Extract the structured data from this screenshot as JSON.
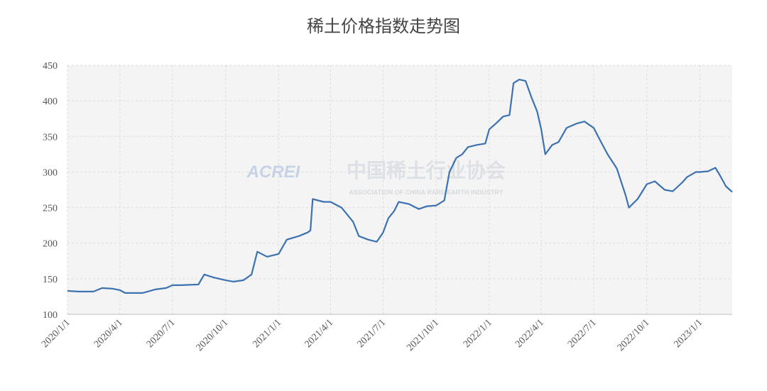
{
  "chart_data": {
    "type": "line",
    "title": "稀土价格指数走势图",
    "watermark": [
      "ACREI",
      "中国稀土行业协会",
      "ASSOCIATION OF CHINA RARE EARTH INDUSTRY"
    ],
    "x": [
      "2020/1/1",
      "2020/1/20",
      "2020/2/15",
      "2020/3/1",
      "2020/3/20",
      "2020/4/1",
      "2020/4/10",
      "2020/5/10",
      "2020/6/1",
      "2020/6/20",
      "2020/7/1",
      "2020/7/15",
      "2020/8/15",
      "2020/8/25",
      "2020/9/10",
      "2020/10/1",
      "2020/10/15",
      "2020/11/1",
      "2020/11/15",
      "2020/11/25",
      "2020/12/12",
      "2021/1/1",
      "2021/1/15",
      "2021/2/5",
      "2021/2/20",
      "2021/2/25",
      "2021/3/1",
      "2021/3/20",
      "2021/4/1",
      "2021/4/20",
      "2021/5/10",
      "2021/5/20",
      "2021/6/5",
      "2021/6/20",
      "2021/7/1",
      "2021/7/10",
      "2021/7/20",
      "2021/7/28",
      "2021/8/15",
      "2021/9/1",
      "2021/9/15",
      "2021/10/1",
      "2021/10/15",
      "2021/10/24",
      "2021/11/5",
      "2021/11/15",
      "2021/11/25",
      "2021/12/10",
      "2021/12/25",
      "2022/1/1",
      "2022/1/15",
      "2022/1/25",
      "2022/2/5",
      "2022/2/12",
      "2022/2/22",
      "2022/3/5",
      "2022/3/15",
      "2022/3/25",
      "2022/4/1",
      "2022/4/8",
      "2022/4/20",
      "2022/5/1",
      "2022/5/15",
      "2022/6/1",
      "2022/6/15",
      "2022/7/1",
      "2022/7/15",
      "2022/7/25",
      "2022/8/10",
      "2022/8/25",
      "2022/8/31",
      "2022/9/15",
      "2022/9/25",
      "2022/10/1",
      "2022/10/15",
      "2022/11/1",
      "2022/11/15",
      "2022/12/1",
      "2022/12/10",
      "2022/12/25",
      "2023/1/1",
      "2023/1/15",
      "2023/1/28",
      "2023/2/5",
      "2023/2/15",
      "2023/2/26"
    ],
    "series": [
      {
        "name": "稀土价格指数",
        "color": "#3d72b0",
        "values": [
          133,
          132,
          132,
          137,
          136,
          134,
          130,
          130,
          135,
          137,
          141,
          141,
          142,
          156,
          152,
          148,
          146,
          148,
          156,
          188,
          181,
          185,
          205,
          210,
          215,
          218,
          262,
          258,
          258,
          250,
          230,
          210,
          205,
          202,
          215,
          235,
          245,
          258,
          255,
          248,
          252,
          253,
          260,
          300,
          320,
          325,
          335,
          338,
          340,
          360,
          370,
          378,
          380,
          425,
          430,
          428,
          405,
          385,
          360,
          325,
          338,
          342,
          362,
          368,
          371,
          362,
          340,
          325,
          305,
          268,
          250,
          262,
          275,
          283,
          287,
          275,
          273,
          285,
          293,
          300,
          300,
          301,
          306,
          295,
          280,
          272
        ]
      }
    ],
    "xlim": [
      "2020/1/1",
      "2023/2/26"
    ],
    "xticks": [
      "2020/1/1",
      "2020/4/1",
      "2020/7/1",
      "2020/10/1",
      "2021/1/1",
      "2021/4/1",
      "2021/7/1",
      "2021/10/1",
      "2022/1/1",
      "2022/4/1",
      "2022/7/1",
      "2022/10/1",
      "2023/1/1"
    ],
    "ylim": [
      100,
      450
    ],
    "yticks": [
      100,
      150,
      200,
      250,
      300,
      350,
      400,
      450
    ],
    "grid": true
  }
}
